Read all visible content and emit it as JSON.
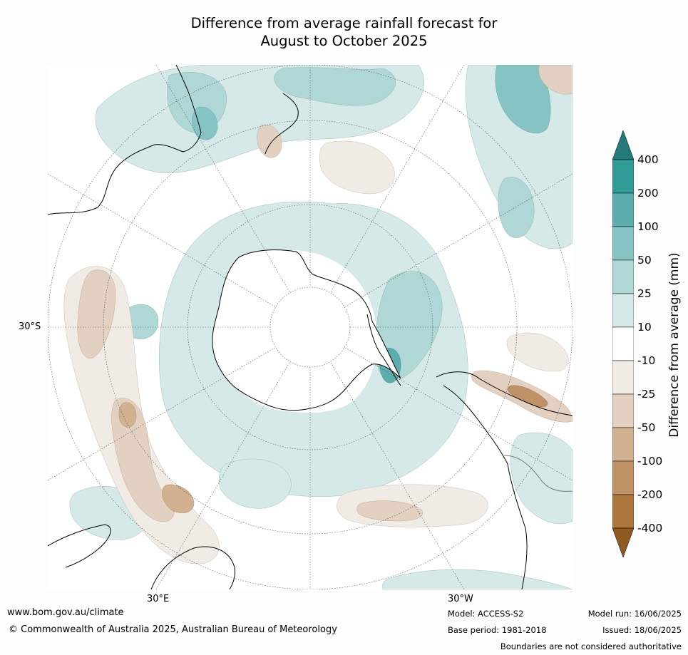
{
  "title_line1": "Difference from average rainfall forecast for",
  "title_line2": "August to October 2025",
  "map": {
    "lat_label": "30°S",
    "lon_labels": [
      "30°E",
      "30°W"
    ]
  },
  "legend": {
    "title": "Difference from average (mm)",
    "ticks": [
      "400",
      "200",
      "100",
      "50",
      "25",
      "10",
      "-10",
      "-25",
      "-50",
      "-100",
      "-200",
      "-400"
    ],
    "colors": {
      "over_400": "#257a7a",
      "200_400": "#319b98",
      "100_200": "#5cadad",
      "50_100": "#86c4c3",
      "25_50": "#aed7d6",
      "10_25": "#d5e9e8",
      "neutral": "#ffffff",
      "m25_m10": "#f1ebe5",
      "m50_m25": "#e2d0c1",
      "m100_m50": "#d2b191",
      "m200_m100": "#bf9164",
      "m400_m200": "#ad763d",
      "under_m400": "#8d5a22"
    }
  },
  "footer": {
    "website": "www.bom.gov.au/climate",
    "copyright": "© Commonwealth of Australia 2025, Australian Bureau of Meteorology",
    "model": "Model: ACCESS-S2",
    "base_period": "Base period: 1981-2018",
    "model_run": "Model run: 16/06/2025",
    "issued": "Issued: 18/06/2025",
    "disclaimer": "Boundaries are not considered authoritative"
  }
}
